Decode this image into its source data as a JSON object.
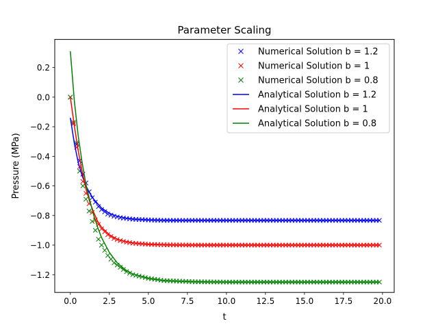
{
  "chart_data": {
    "type": "line",
    "title": "Parameter Scaling",
    "xlabel": "t",
    "ylabel": "Pressure (MPa)",
    "xlim": [
      -1.0,
      20.75
    ],
    "ylim": [
      -1.32,
      0.39
    ],
    "xticks": [
      0.0,
      2.5,
      5.0,
      7.5,
      10.0,
      12.5,
      15.0,
      17.5,
      20.0
    ],
    "xtick_labels": [
      "0.0",
      "2.5",
      "5.0",
      "7.5",
      "10.0",
      "12.5",
      "15.0",
      "17.5",
      "20.0"
    ],
    "yticks": [
      0.2,
      0.0,
      -0.2,
      -0.4,
      -0.6,
      -0.8,
      -1.0,
      -1.2
    ],
    "ytick_labels": [
      "0.2",
      "0.0",
      "−0.2",
      "−0.4",
      "−0.6",
      "−0.8",
      "−1.0",
      "−1.2"
    ],
    "grid": false,
    "legend_position": "top-right",
    "x_sampling": {
      "start": 0.0,
      "stop": 19.8,
      "step": 0.2
    },
    "series": [
      {
        "name": "Numerical Solution b = 1.2",
        "kind": "markers",
        "marker": "x",
        "color": "#0000ff",
        "x": [
          0.0,
          0.2,
          0.4,
          0.6,
          0.8,
          1.0,
          1.2,
          1.4,
          1.6,
          1.8,
          2.0,
          2.4,
          2.8,
          3.2,
          3.6,
          4.0,
          5.0,
          6.0,
          8.0,
          10.0,
          12.5,
          15.0,
          17.5,
          19.8
        ],
        "y": [
          0.0,
          -0.18,
          -0.32,
          -0.43,
          -0.52,
          -0.58,
          -0.64,
          -0.68,
          -0.71,
          -0.74,
          -0.76,
          -0.79,
          -0.805,
          -0.815,
          -0.82,
          -0.825,
          -0.83,
          -0.833,
          -0.833,
          -0.833,
          -0.833,
          -0.833,
          -0.833,
          -0.833
        ]
      },
      {
        "name": "Numerical Solution b = 1",
        "kind": "markers",
        "marker": "x",
        "color": "#ff0000",
        "x": [
          0.0,
          0.2,
          0.4,
          0.6,
          0.8,
          1.0,
          1.2,
          1.4,
          1.6,
          1.8,
          2.0,
          2.4,
          2.8,
          3.2,
          3.6,
          4.0,
          5.0,
          6.0,
          8.0,
          10.0,
          12.5,
          15.0,
          17.5,
          19.8
        ],
        "y": [
          0.0,
          -0.18,
          -0.34,
          -0.47,
          -0.57,
          -0.65,
          -0.72,
          -0.78,
          -0.83,
          -0.86,
          -0.89,
          -0.93,
          -0.955,
          -0.97,
          -0.98,
          -0.987,
          -0.995,
          -0.998,
          -1.0,
          -1.0,
          -1.0,
          -1.0,
          -1.0,
          -1.0
        ]
      },
      {
        "name": "Numerical Solution b = 0.8",
        "kind": "markers",
        "marker": "x",
        "color": "#008000",
        "x": [
          0.0,
          0.2,
          0.4,
          0.6,
          0.8,
          1.0,
          1.2,
          1.4,
          1.6,
          1.8,
          2.0,
          2.4,
          2.8,
          3.2,
          3.6,
          4.0,
          5.0,
          6.0,
          8.0,
          10.0,
          12.5,
          15.0,
          17.5,
          19.8
        ],
        "y": [
          0.0,
          -0.17,
          -0.31,
          -0.5,
          -0.6,
          -0.69,
          -0.77,
          -0.84,
          -0.9,
          -0.96,
          -1.0,
          -1.07,
          -1.12,
          -1.15,
          -1.18,
          -1.2,
          -1.225,
          -1.24,
          -1.248,
          -1.25,
          -1.25,
          -1.25,
          -1.25,
          -1.25
        ]
      },
      {
        "name": "Analytical Solution b = 1.2",
        "kind": "line",
        "color": "#0000ff",
        "x": [
          0.0,
          0.25,
          0.5,
          0.75,
          1.0,
          1.25,
          1.5,
          1.75,
          2.0,
          2.5,
          3.0,
          3.5,
          4.0,
          5.0,
          6.0,
          7.0,
          8.0,
          10.0,
          12.5,
          15.0,
          17.5,
          19.8
        ],
        "y": [
          -0.14,
          -0.31,
          -0.44,
          -0.53,
          -0.6,
          -0.65,
          -0.69,
          -0.72,
          -0.75,
          -0.785,
          -0.805,
          -0.817,
          -0.824,
          -0.83,
          -0.832,
          -0.833,
          -0.833,
          -0.833,
          -0.833,
          -0.833,
          -0.833,
          -0.833
        ]
      },
      {
        "name": "Analytical Solution b = 1",
        "kind": "line",
        "color": "#ff0000",
        "x": [
          0.0,
          0.25,
          0.5,
          0.75,
          1.0,
          1.25,
          1.5,
          1.75,
          2.0,
          2.5,
          3.0,
          3.5,
          4.0,
          5.0,
          6.0,
          7.0,
          8.0,
          10.0,
          12.5,
          15.0,
          17.5,
          19.8
        ],
        "y": [
          0.0,
          -0.19,
          -0.36,
          -0.5,
          -0.62,
          -0.71,
          -0.78,
          -0.84,
          -0.88,
          -0.93,
          -0.96,
          -0.975,
          -0.985,
          -0.995,
          -0.998,
          -1.0,
          -1.0,
          -1.0,
          -1.0,
          -1.0,
          -1.0,
          -1.0
        ]
      },
      {
        "name": "Analytical Solution b = 0.8",
        "kind": "line",
        "color": "#008000",
        "x": [
          0.0,
          0.25,
          0.5,
          0.75,
          1.0,
          1.25,
          1.5,
          1.75,
          2.0,
          2.5,
          3.0,
          3.5,
          4.0,
          5.0,
          6.0,
          7.0,
          8.0,
          10.0,
          12.5,
          15.0,
          17.5,
          19.8
        ],
        "y": [
          0.31,
          -0.02,
          -0.26,
          -0.44,
          -0.59,
          -0.7,
          -0.8,
          -0.88,
          -0.95,
          -1.05,
          -1.12,
          -1.165,
          -1.195,
          -1.225,
          -1.24,
          -1.245,
          -1.248,
          -1.25,
          -1.25,
          -1.25,
          -1.25,
          -1.25
        ]
      }
    ]
  }
}
